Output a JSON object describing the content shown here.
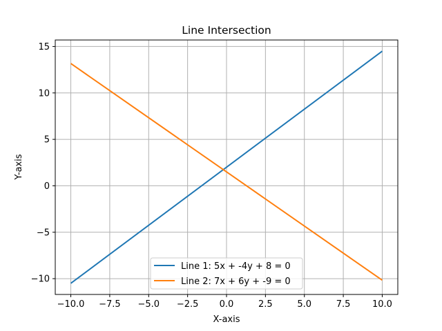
{
  "chart_data": {
    "type": "line",
    "title": "Line Intersection",
    "xlabel": "X-axis",
    "ylabel": "Y-axis",
    "xlim": [
      -11,
      11
    ],
    "ylim": [
      -11.7,
      15.7
    ],
    "xticks": [
      -10,
      -7.5,
      -5,
      -2.5,
      0,
      2.5,
      5,
      7.5,
      10
    ],
    "xtick_labels": [
      "−10.0",
      "−7.5",
      "−5.0",
      "−2.5",
      "0.0",
      "2.5",
      "5.0",
      "7.5",
      "10.0"
    ],
    "yticks": [
      -10,
      -5,
      0,
      5,
      10,
      15
    ],
    "ytick_labels": [
      "−10",
      "−5",
      "0",
      "5",
      "10",
      "15"
    ],
    "grid": true,
    "legend_position": "bottom-center",
    "series": [
      {
        "name": "Line 1: 5x + -4y + 8 = 0",
        "color": "#1f77b4",
        "x": [
          -10,
          10
        ],
        "y": [
          -10.5,
          14.5
        ]
      },
      {
        "name": "Line 2: 7x + 6y + -9 = 0",
        "color": "#ff7f0e",
        "x": [
          -10,
          10
        ],
        "y": [
          13.1667,
          -10.1667
        ]
      }
    ]
  }
}
